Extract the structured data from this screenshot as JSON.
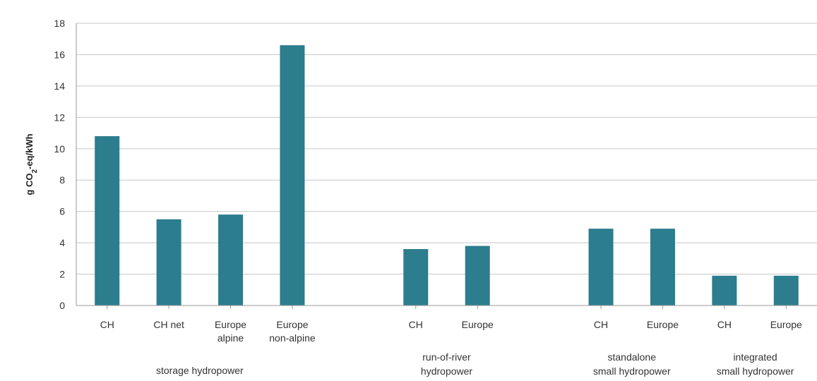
{
  "chart_data": {
    "type": "bar",
    "ylabel_parts": {
      "pre": "g CO",
      "sub": "2",
      "post": "-eq/kWh"
    },
    "ylim": [
      0,
      18
    ],
    "yticks": [
      "0",
      "2",
      "4",
      "6",
      "8",
      "10",
      "12",
      "14",
      "16",
      "18"
    ],
    "grid": true,
    "color": "#2c7d8e",
    "groups": [
      {
        "label": [
          "storage hydropower"
        ],
        "bars": [
          {
            "label": [
              "CH"
            ],
            "value": 10.8
          },
          {
            "label": [
              "CH net"
            ],
            "value": 5.5
          },
          {
            "label": [
              "Europe",
              "alpine"
            ],
            "value": 5.8
          },
          {
            "label": [
              "Europe",
              "non-alpine"
            ],
            "value": 16.6
          }
        ]
      },
      {
        "label": [
          "run-of-river",
          "hydropower"
        ],
        "bars": [
          {
            "label": [
              "CH"
            ],
            "value": 3.6
          },
          {
            "label": [
              "Europe"
            ],
            "value": 3.8
          }
        ]
      },
      {
        "label": [
          "standalone",
          "small hydropower"
        ],
        "bars": [
          {
            "label": [
              "CH"
            ],
            "value": 4.9
          },
          {
            "label": [
              "Europe"
            ],
            "value": 4.9
          }
        ]
      },
      {
        "label": [
          "integrated",
          "small hydropower"
        ],
        "bars": [
          {
            "label": [
              "CH"
            ],
            "value": 1.9
          },
          {
            "label": [
              "Europe"
            ],
            "value": 1.9
          }
        ]
      }
    ]
  }
}
